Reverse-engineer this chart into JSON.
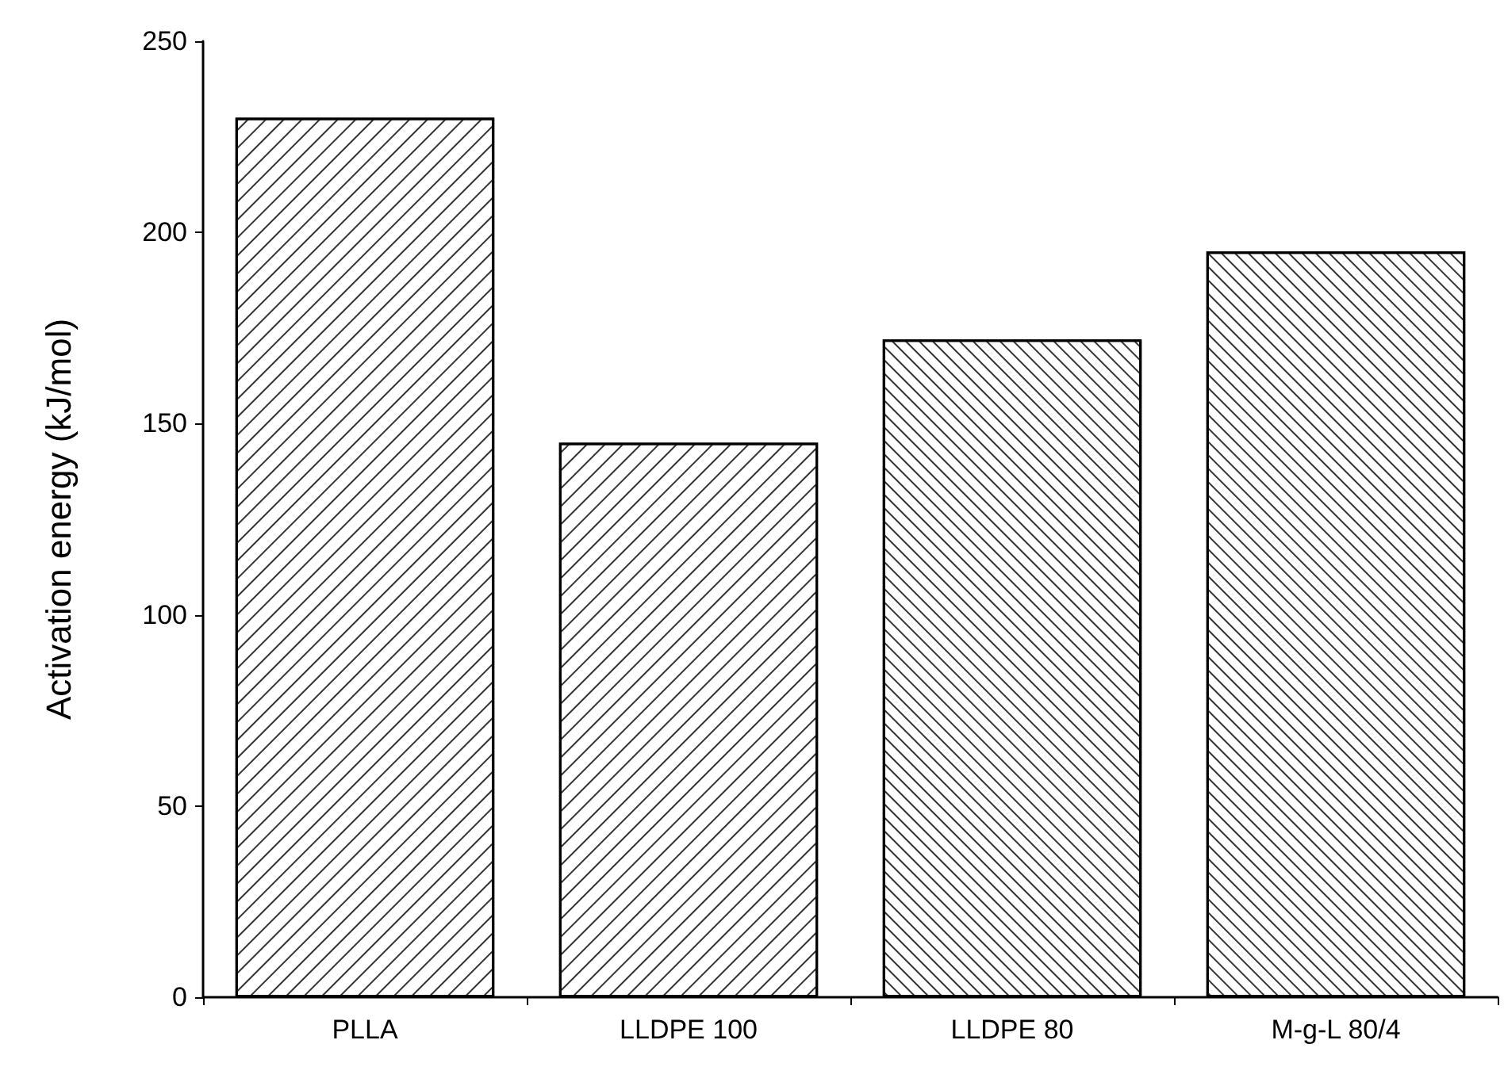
{
  "chart_data": {
    "type": "bar",
    "ylabel": "Activation energy (kJ/mol)",
    "categories": [
      "PLLA",
      "LLDPE 100",
      "LLDPE 80",
      "M-g-L 80/4"
    ],
    "series": [
      {
        "color": "#ffffff",
        "values": [
          230,
          145,
          172,
          195
        ]
      }
    ],
    "ylim": [
      0,
      250
    ],
    "yticks": [
      0,
      50,
      100,
      150,
      200,
      250
    ],
    "grid": false
  }
}
